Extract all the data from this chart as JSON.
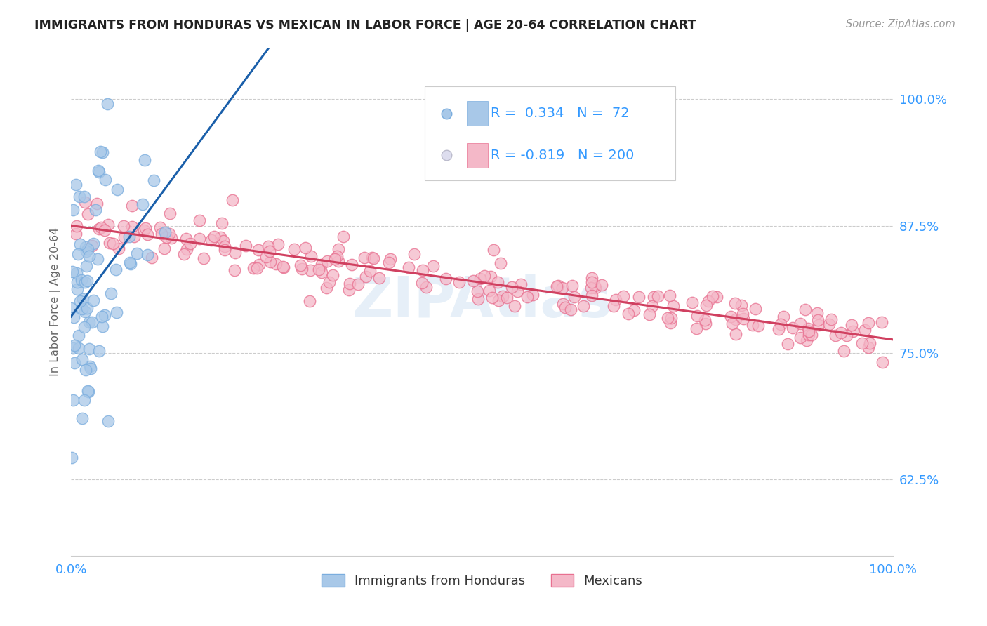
{
  "title": "IMMIGRANTS FROM HONDURAS VS MEXICAN IN LABOR FORCE | AGE 20-64 CORRELATION CHART",
  "source": "Source: ZipAtlas.com",
  "ylabel": "In Labor Force | Age 20-64",
  "R_honduras": 0.334,
  "N_honduras": 72,
  "R_mexican": -0.819,
  "N_mexican": 200,
  "color_honduras_fill": "#a8c8e8",
  "color_honduras_edge": "#7aadde",
  "color_mexican_fill": "#f4b8c8",
  "color_mexican_edge": "#e87090",
  "color_line_honduras": "#1a5faa",
  "color_line_mexican": "#d04060",
  "color_dashed_line": "#bbbbbb",
  "title_color": "#222222",
  "source_color": "#999999",
  "axis_label_color": "#666666",
  "tick_label_color": "#3399ff",
  "watermark_text": "ZIPAtlas",
  "xlim": [
    0.0,
    1.0
  ],
  "ylim": [
    0.55,
    1.05
  ],
  "yticks": [
    0.625,
    0.75,
    0.875,
    1.0
  ],
  "ytick_labels": [
    "62.5%",
    "75.0%",
    "87.5%",
    "100.0%"
  ],
  "background_color": "#ffffff",
  "grid_color": "#cccccc",
  "legend_box_color": "#f0f0f0",
  "legend_edge_color": "#cccccc"
}
